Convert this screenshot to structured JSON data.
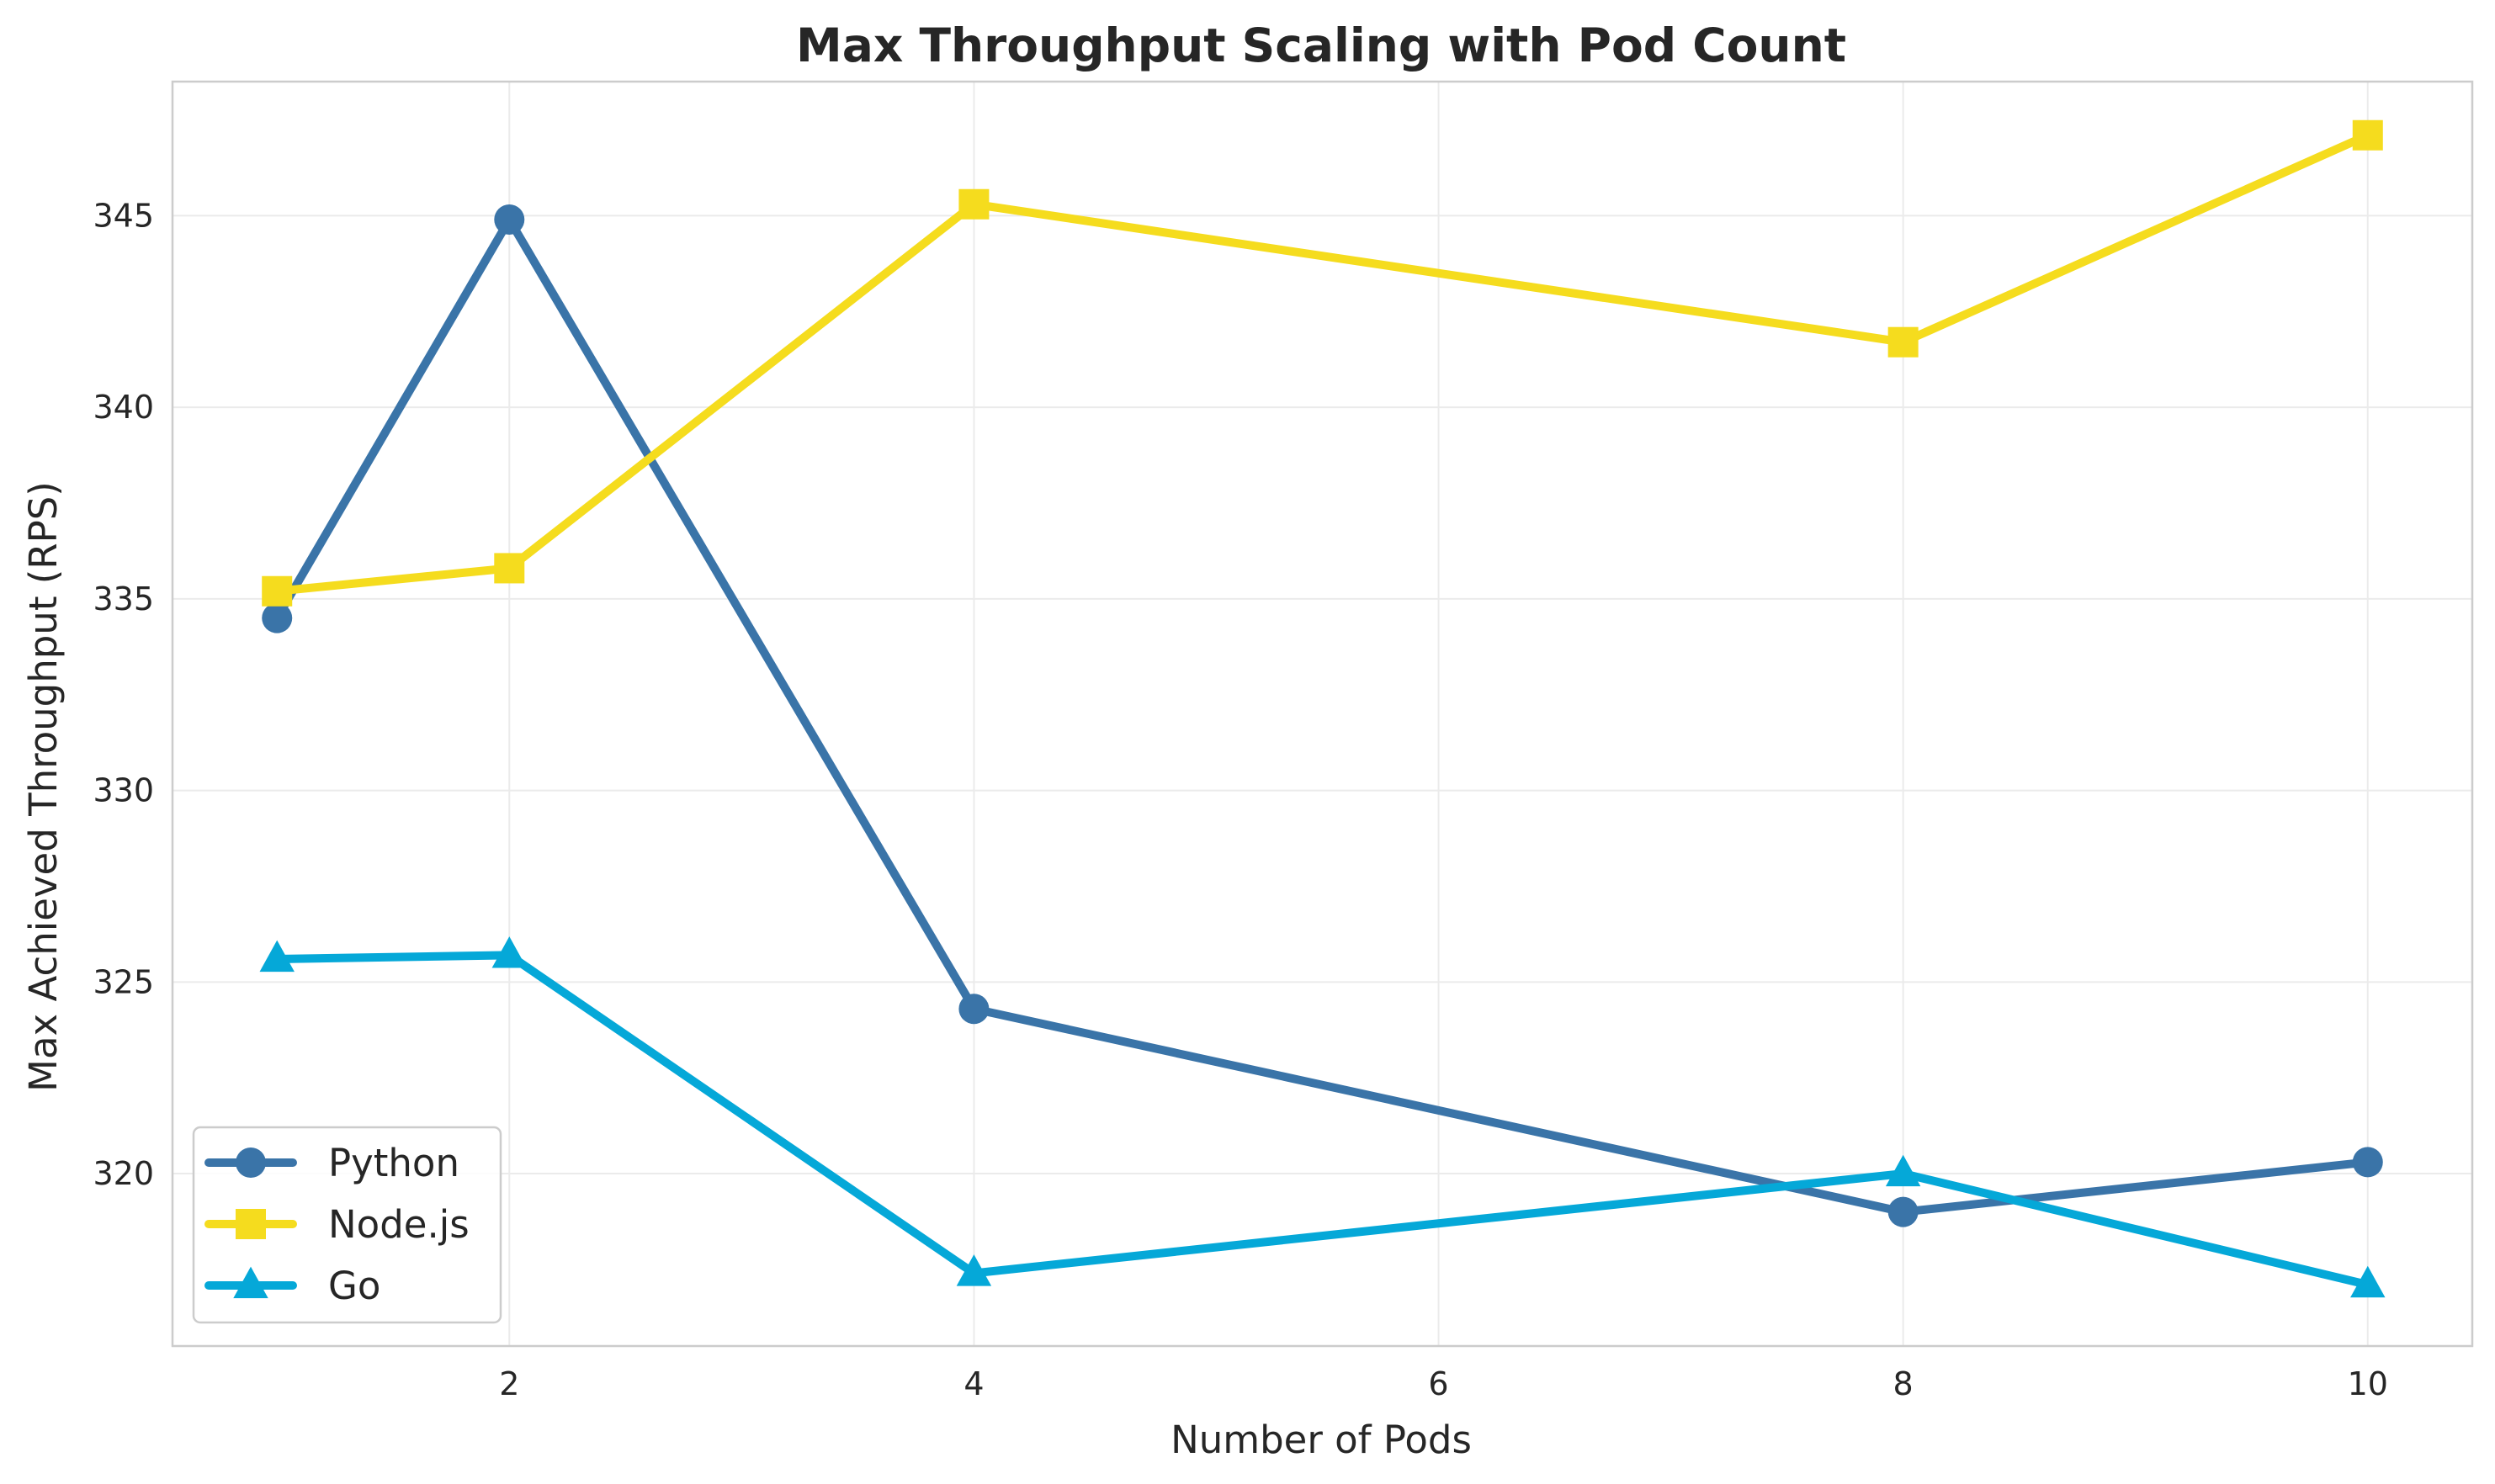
{
  "chart_data": {
    "type": "line",
    "title": "Max Throughput Scaling with Pod Count",
    "xlabel": "Number of Pods",
    "ylabel": "Max Achieved Throughput (RPS)",
    "x": [
      1,
      2,
      4,
      8,
      10
    ],
    "xlim": [
      0.55,
      10.45
    ],
    "ylim": [
      315.5,
      348.5
    ],
    "xticks": [
      2,
      4,
      6,
      8,
      10
    ],
    "yticks": [
      320,
      325,
      330,
      335,
      340,
      345
    ],
    "grid": true,
    "legend_position": "lower-left",
    "series": [
      {
        "name": "Python",
        "marker": "circle",
        "color": "#3a74a8",
        "values": [
          334.5,
          344.9,
          324.3,
          319.0,
          320.3
        ]
      },
      {
        "name": "Node.js",
        "marker": "square",
        "color": "#f5dc1e",
        "values": [
          335.2,
          335.8,
          345.3,
          341.7,
          347.1
        ]
      },
      {
        "name": "Go",
        "marker": "triangle",
        "color": "#05a8d8",
        "values": [
          325.6,
          325.7,
          317.4,
          320.0,
          317.1
        ]
      }
    ]
  }
}
